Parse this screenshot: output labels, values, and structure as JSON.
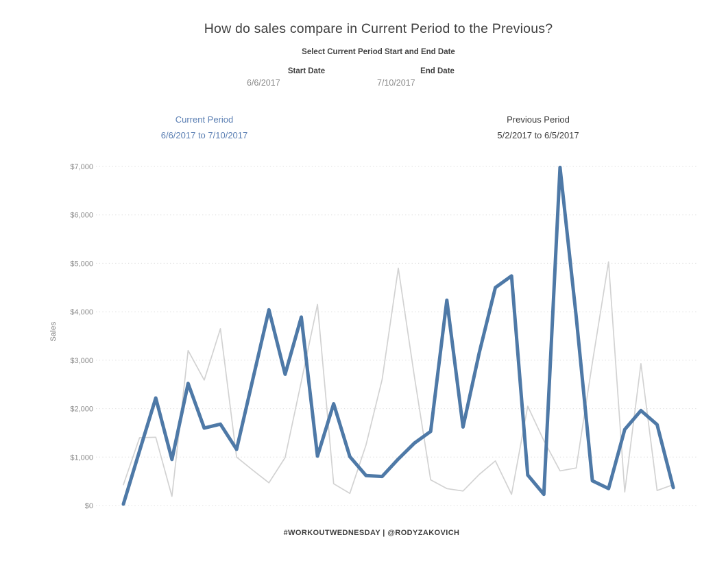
{
  "title": "How do sales compare in Current Period to the Previous?",
  "controls": {
    "heading": "Select Current Period Start and End Date",
    "start": {
      "label": "Start Date",
      "value": "6/6/2017"
    },
    "end": {
      "label": "End Date",
      "value": "7/10/2017"
    }
  },
  "legend": {
    "current": {
      "title": "Current Period",
      "range": "6/6/2017 to 7/10/2017",
      "color": "#5b7fb3"
    },
    "previous": {
      "title": "Previous Period",
      "range": "5/2/2017 to 6/5/2017",
      "color": "#3d3d3d"
    }
  },
  "footer": "#WORKOUTWEDNESDAY | @RODYZAKOVICH",
  "chart_data": {
    "type": "line",
    "title": "Daily sales: current 35-day period vs previous 35-day period",
    "xlabel": "",
    "ylabel": "Sales",
    "ylim": [
      0,
      7000
    ],
    "grid": "horizontal-dotted",
    "legend_position": "above-chart",
    "x_description": "Day 1-35 of each selected period (x-axis labels not shown)",
    "yticks": [
      "$0",
      "$1,000",
      "$2,000",
      "$3,000",
      "$4,000",
      "$5,000",
      "$6,000",
      "$7,000"
    ],
    "series": [
      {
        "name": "Previous Period (5/2/2017 to 6/5/2017)",
        "color": "#d2d2d2",
        "stroke_width": 1.7,
        "values": [
          430,
          1400,
          1410,
          190,
          3200,
          2590,
          3650,
          1000,
          730,
          470,
          990,
          2560,
          4150,
          450,
          250,
          1250,
          2600,
          4900,
          2650,
          530,
          350,
          300,
          640,
          920,
          230,
          2050,
          1340,
          715,
          775,
          2950,
          5030,
          280,
          2930,
          310,
          430
        ]
      },
      {
        "name": "Current Period (6/6/2017 to 7/10/2017)",
        "color": "#4e79a7",
        "stroke_width": 5,
        "values": [
          30,
          1130,
          2220,
          950,
          2520,
          1600,
          1680,
          1160,
          2600,
          4040,
          2710,
          3890,
          1020,
          2100,
          1010,
          620,
          600,
          960,
          1290,
          1530,
          4240,
          1620,
          3150,
          4500,
          4740,
          630,
          230,
          6980,
          3900,
          510,
          350,
          1570,
          1960,
          1670,
          370
        ]
      }
    ]
  }
}
